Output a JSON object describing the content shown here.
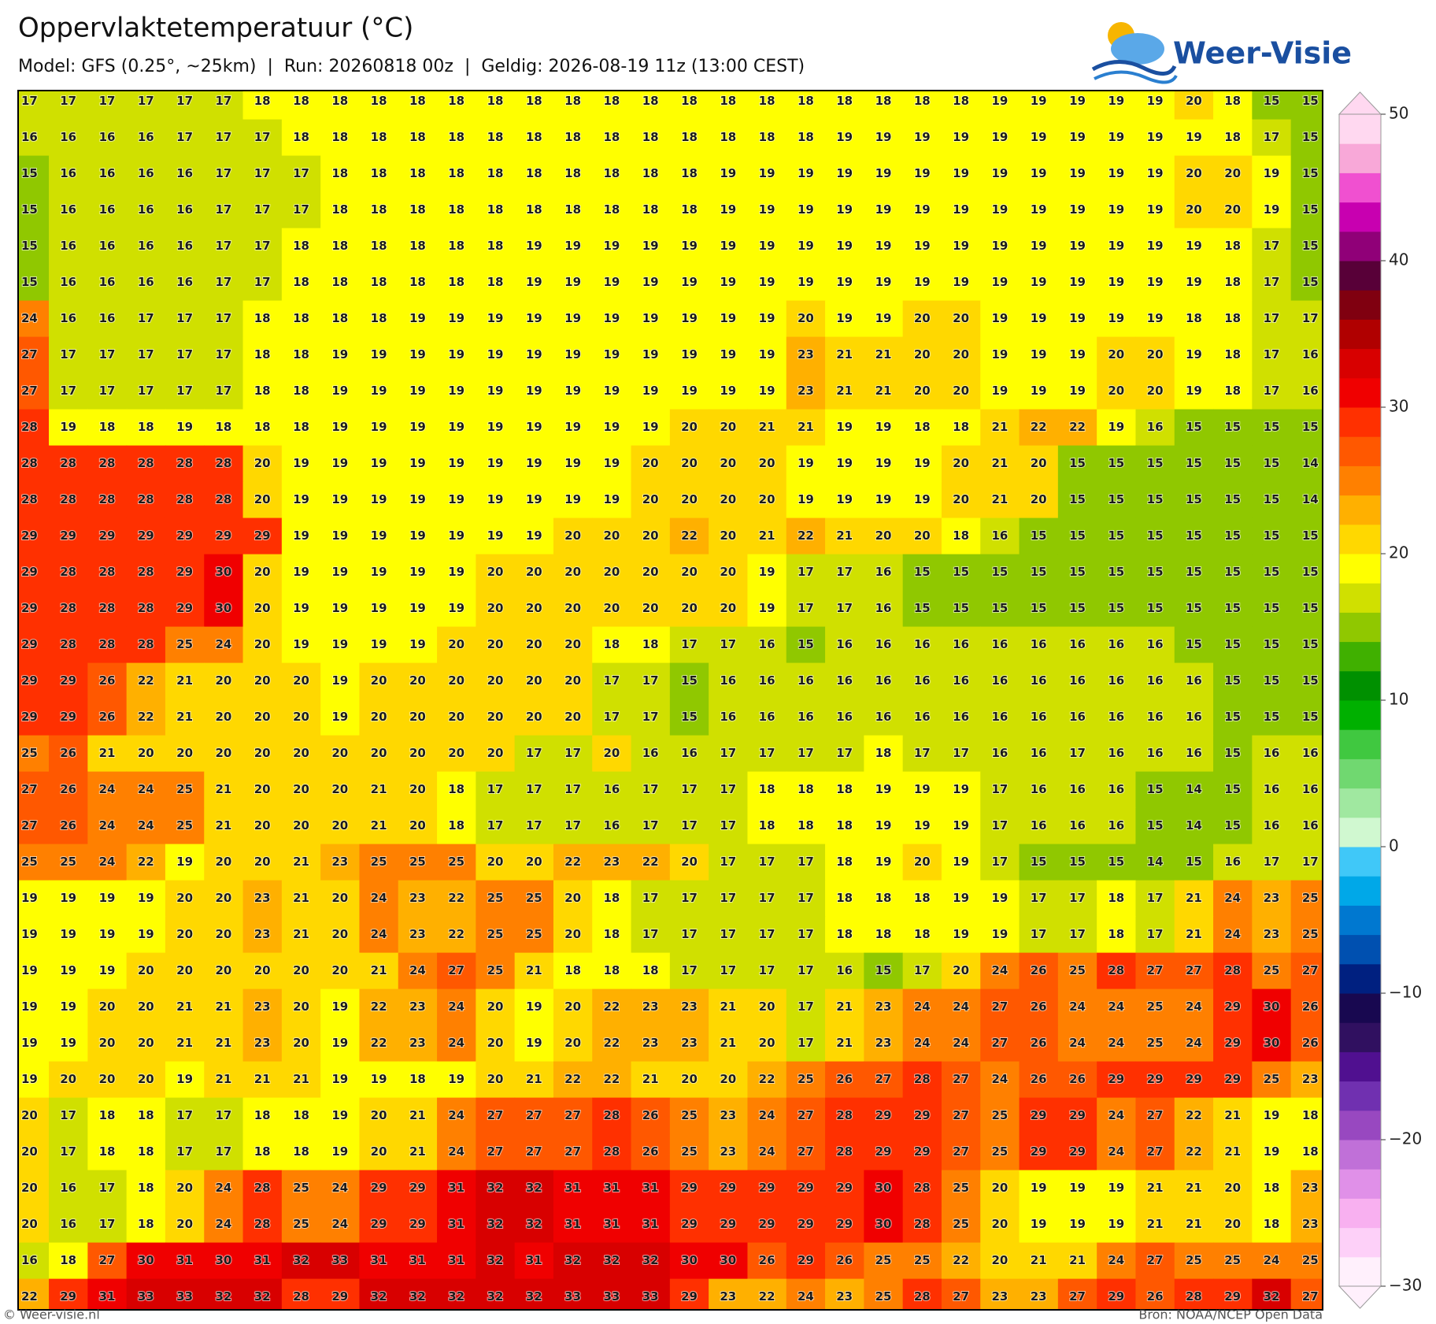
{
  "header": {
    "title": "Oppervlaktetemperatuur (°C)",
    "subtitle": "Model: GFS (0.25°, ~25km)  |  Run: 20260818 00z  |  Geldig: 2026-08-19 11z (13:00 CEST)",
    "logo": "Weer-Visie"
  },
  "map": {
    "grid": [
      [
        17,
        17,
        17,
        17,
        17,
        17,
        18,
        18,
        18,
        18,
        18,
        18,
        18,
        18,
        18,
        18,
        18,
        18,
        18,
        18,
        18,
        18,
        18,
        18,
        18,
        19,
        19,
        19,
        19,
        19,
        20,
        18,
        15,
        15
      ],
      [
        16,
        16,
        16,
        16,
        17,
        17,
        17,
        18,
        18,
        18,
        18,
        18,
        18,
        18,
        18,
        18,
        18,
        18,
        18,
        18,
        18,
        19,
        19,
        19,
        19,
        19,
        19,
        19,
        19,
        19,
        19,
        18,
        17,
        15
      ],
      [
        15,
        16,
        16,
        16,
        16,
        17,
        17,
        17,
        18,
        18,
        18,
        18,
        18,
        18,
        18,
        18,
        18,
        18,
        19,
        19,
        19,
        19,
        19,
        19,
        19,
        19,
        19,
        19,
        19,
        19,
        20,
        20,
        19,
        15
      ],
      [
        15,
        16,
        16,
        16,
        16,
        17,
        17,
        17,
        18,
        18,
        18,
        18,
        18,
        18,
        18,
        18,
        18,
        18,
        19,
        19,
        19,
        19,
        19,
        19,
        19,
        19,
        19,
        19,
        19,
        19,
        20,
        20,
        19,
        15
      ],
      [
        15,
        16,
        16,
        16,
        16,
        17,
        17,
        18,
        18,
        18,
        18,
        18,
        18,
        19,
        19,
        19,
        19,
        19,
        19,
        19,
        19,
        19,
        19,
        19,
        19,
        19,
        19,
        19,
        19,
        19,
        19,
        18,
        17,
        15
      ],
      [
        15,
        16,
        16,
        16,
        16,
        17,
        17,
        18,
        18,
        18,
        18,
        18,
        18,
        19,
        19,
        19,
        19,
        19,
        19,
        19,
        19,
        19,
        19,
        19,
        19,
        19,
        19,
        19,
        19,
        19,
        19,
        18,
        17,
        15
      ],
      [
        24,
        16,
        16,
        17,
        17,
        17,
        18,
        18,
        18,
        18,
        19,
        19,
        19,
        19,
        19,
        19,
        19,
        19,
        19,
        19,
        20,
        19,
        19,
        20,
        20,
        19,
        19,
        19,
        19,
        19,
        18,
        18,
        17,
        17
      ],
      [
        27,
        17,
        17,
        17,
        17,
        17,
        18,
        18,
        19,
        19,
        19,
        19,
        19,
        19,
        19,
        19,
        19,
        19,
        19,
        19,
        23,
        21,
        21,
        20,
        20,
        19,
        19,
        19,
        20,
        20,
        19,
        18,
        17,
        16
      ],
      [
        27,
        17,
        17,
        17,
        17,
        17,
        18,
        18,
        19,
        19,
        19,
        19,
        19,
        19,
        19,
        19,
        19,
        19,
        19,
        19,
        23,
        21,
        21,
        20,
        20,
        19,
        19,
        19,
        20,
        20,
        19,
        18,
        17,
        16
      ],
      [
        28,
        19,
        18,
        18,
        19,
        18,
        18,
        18,
        19,
        19,
        19,
        19,
        19,
        19,
        19,
        19,
        19,
        20,
        20,
        21,
        21,
        19,
        19,
        18,
        18,
        21,
        22,
        22,
        19,
        16,
        15,
        15,
        15,
        15
      ],
      [
        28,
        28,
        28,
        28,
        28,
        28,
        20,
        19,
        19,
        19,
        19,
        19,
        19,
        19,
        19,
        19,
        20,
        20,
        20,
        20,
        19,
        19,
        19,
        19,
        20,
        21,
        20,
        15,
        15,
        15,
        15,
        15,
        15,
        14
      ],
      [
        28,
        28,
        28,
        28,
        28,
        28,
        20,
        19,
        19,
        19,
        19,
        19,
        19,
        19,
        19,
        19,
        20,
        20,
        20,
        20,
        19,
        19,
        19,
        19,
        20,
        21,
        20,
        15,
        15,
        15,
        15,
        15,
        15,
        14
      ],
      [
        29,
        29,
        29,
        29,
        29,
        29,
        29,
        19,
        19,
        19,
        19,
        19,
        19,
        19,
        20,
        20,
        20,
        22,
        20,
        21,
        22,
        21,
        20,
        20,
        18,
        16,
        15,
        15,
        15,
        15,
        15,
        15,
        15,
        15
      ],
      [
        29,
        28,
        28,
        28,
        29,
        30,
        20,
        19,
        19,
        19,
        19,
        19,
        20,
        20,
        20,
        20,
        20,
        20,
        20,
        19,
        17,
        17,
        16,
        15,
        15,
        15,
        15,
        15,
        15,
        15,
        15,
        15,
        15,
        15
      ],
      [
        29,
        28,
        28,
        28,
        29,
        30,
        20,
        19,
        19,
        19,
        19,
        19,
        20,
        20,
        20,
        20,
        20,
        20,
        20,
        19,
        17,
        17,
        16,
        15,
        15,
        15,
        15,
        15,
        15,
        15,
        15,
        15,
        15,
        15
      ],
      [
        29,
        28,
        28,
        28,
        25,
        24,
        20,
        19,
        19,
        19,
        19,
        20,
        20,
        20,
        20,
        18,
        18,
        17,
        17,
        16,
        15,
        16,
        16,
        16,
        16,
        16,
        16,
        16,
        16,
        16,
        15,
        15,
        15,
        15
      ],
      [
        29,
        29,
        26,
        22,
        21,
        20,
        20,
        20,
        19,
        20,
        20,
        20,
        20,
        20,
        20,
        17,
        17,
        15,
        16,
        16,
        16,
        16,
        16,
        16,
        16,
        16,
        16,
        16,
        16,
        16,
        16,
        15,
        15,
        15
      ],
      [
        29,
        29,
        26,
        22,
        21,
        20,
        20,
        20,
        19,
        20,
        20,
        20,
        20,
        20,
        20,
        17,
        17,
        15,
        16,
        16,
        16,
        16,
        16,
        16,
        16,
        16,
        16,
        16,
        16,
        16,
        16,
        15,
        15,
        15
      ],
      [
        25,
        26,
        21,
        20,
        20,
        20,
        20,
        20,
        20,
        20,
        20,
        20,
        20,
        17,
        17,
        20,
        16,
        16,
        17,
        17,
        17,
        17,
        18,
        17,
        17,
        16,
        16,
        17,
        16,
        16,
        16,
        15,
        16,
        16
      ],
      [
        27,
        26,
        24,
        24,
        25,
        21,
        20,
        20,
        20,
        21,
        20,
        18,
        17,
        17,
        17,
        16,
        17,
        17,
        17,
        18,
        18,
        18,
        19,
        19,
        19,
        17,
        16,
        16,
        16,
        15,
        14,
        15,
        16,
        16
      ],
      [
        27,
        26,
        24,
        24,
        25,
        21,
        20,
        20,
        20,
        21,
        20,
        18,
        17,
        17,
        17,
        16,
        17,
        17,
        17,
        18,
        18,
        18,
        19,
        19,
        19,
        17,
        16,
        16,
        16,
        15,
        14,
        15,
        16,
        16
      ],
      [
        25,
        25,
        24,
        22,
        19,
        20,
        20,
        21,
        23,
        25,
        25,
        25,
        20,
        20,
        22,
        23,
        22,
        20,
        17,
        17,
        17,
        18,
        19,
        20,
        19,
        17,
        15,
        15,
        15,
        14,
        15,
        16,
        17,
        17
      ],
      [
        19,
        19,
        19,
        19,
        20,
        20,
        23,
        21,
        20,
        24,
        23,
        22,
        25,
        25,
        20,
        18,
        17,
        17,
        17,
        17,
        17,
        18,
        18,
        18,
        19,
        19,
        17,
        17,
        18,
        17,
        21,
        24,
        23,
        25
      ],
      [
        19,
        19,
        19,
        19,
        20,
        20,
        23,
        21,
        20,
        24,
        23,
        22,
        25,
        25,
        20,
        18,
        17,
        17,
        17,
        17,
        17,
        18,
        18,
        18,
        19,
        19,
        17,
        17,
        18,
        17,
        21,
        24,
        23,
        25
      ],
      [
        19,
        19,
        19,
        20,
        20,
        20,
        20,
        20,
        20,
        21,
        24,
        27,
        25,
        21,
        18,
        18,
        18,
        17,
        17,
        17,
        17,
        16,
        15,
        17,
        20,
        24,
        26,
        25,
        28,
        27,
        27,
        28,
        25,
        27
      ],
      [
        19,
        19,
        20,
        20,
        21,
        21,
        23,
        20,
        19,
        22,
        23,
        24,
        20,
        19,
        20,
        22,
        23,
        23,
        21,
        20,
        17,
        21,
        23,
        24,
        24,
        27,
        26,
        24,
        24,
        25,
        24,
        29,
        30,
        26
      ],
      [
        19,
        19,
        20,
        20,
        21,
        21,
        23,
        20,
        19,
        22,
        23,
        24,
        20,
        19,
        20,
        22,
        23,
        23,
        21,
        20,
        17,
        21,
        23,
        24,
        24,
        27,
        26,
        24,
        24,
        25,
        24,
        29,
        30,
        26
      ],
      [
        19,
        20,
        20,
        20,
        19,
        21,
        21,
        21,
        19,
        19,
        18,
        19,
        20,
        21,
        22,
        22,
        21,
        20,
        20,
        22,
        25,
        26,
        27,
        28,
        27,
        24,
        26,
        26,
        29,
        29,
        29,
        29,
        25,
        23
      ],
      [
        20,
        17,
        18,
        18,
        17,
        17,
        18,
        18,
        19,
        20,
        21,
        24,
        27,
        27,
        27,
        28,
        26,
        25,
        23,
        24,
        27,
        28,
        29,
        29,
        27,
        25,
        29,
        29,
        24,
        27,
        22,
        21,
        19,
        18
      ],
      [
        20,
        17,
        18,
        18,
        17,
        17,
        18,
        18,
        19,
        20,
        21,
        24,
        27,
        27,
        27,
        28,
        26,
        25,
        23,
        24,
        27,
        28,
        29,
        29,
        27,
        25,
        29,
        29,
        24,
        27,
        22,
        21,
        19,
        18
      ],
      [
        20,
        16,
        17,
        18,
        20,
        24,
        28,
        25,
        24,
        29,
        29,
        31,
        32,
        32,
        31,
        31,
        31,
        29,
        29,
        29,
        29,
        29,
        30,
        28,
        25,
        20,
        19,
        19,
        19,
        21,
        21,
        20,
        18,
        23
      ],
      [
        20,
        16,
        17,
        18,
        20,
        24,
        28,
        25,
        24,
        29,
        29,
        31,
        32,
        32,
        31,
        31,
        31,
        29,
        29,
        29,
        29,
        29,
        30,
        28,
        25,
        20,
        19,
        19,
        19,
        21,
        21,
        20,
        18,
        23
      ],
      [
        16,
        18,
        27,
        30,
        31,
        30,
        31,
        32,
        33,
        31,
        31,
        31,
        32,
        31,
        32,
        32,
        32,
        30,
        30,
        26,
        29,
        26,
        25,
        25,
        22,
        20,
        21,
        21,
        24,
        27,
        25,
        25,
        24,
        25
      ],
      [
        22,
        29,
        31,
        33,
        33,
        32,
        32,
        28,
        29,
        32,
        32,
        32,
        32,
        32,
        33,
        33,
        33,
        29,
        23,
        22,
        24,
        23,
        25,
        28,
        27,
        23,
        23,
        27,
        29,
        26,
        28,
        29,
        32,
        27
      ]
    ],
    "colorbar": {
      "clim": [
        -30,
        50
      ],
      "ticks": [
        {
          "value": -30,
          "label": "−30"
        },
        {
          "value": -20,
          "label": "−20"
        },
        {
          "value": -10,
          "label": "−10"
        },
        0,
        10,
        20,
        30,
        40,
        50
      ],
      "colors": [
        "#fff0fc",
        "#fdd0f8",
        "#f8b0f0",
        "#e090e8",
        "#c070d8",
        "#9848c0",
        "#7030b0",
        "#501090",
        "#301060",
        "#180850",
        "#002080",
        "#0050b0",
        "#0078d0",
        "#00a8e8",
        "#40c8f8",
        "#d0f8d0",
        "#a0e8a0",
        "#70d870",
        "#40c840",
        "#00b000",
        "#009000",
        "#40b000",
        "#90c800",
        "#d0e000",
        "#ffff00",
        "#ffd800",
        "#ffb000",
        "#ff8000",
        "#ff5800",
        "#ff3000",
        "#f00000",
        "#d80000",
        "#b00000",
        "#800010",
        "#580038",
        "#900078",
        "#c800b0",
        "#f050d0",
        "#f8a8d8",
        "#ffd8f0"
      ]
    }
  },
  "footer": {
    "left": "© Weer-visie.nl",
    "right": "Bron: NOAA/NCEP Open Data"
  }
}
